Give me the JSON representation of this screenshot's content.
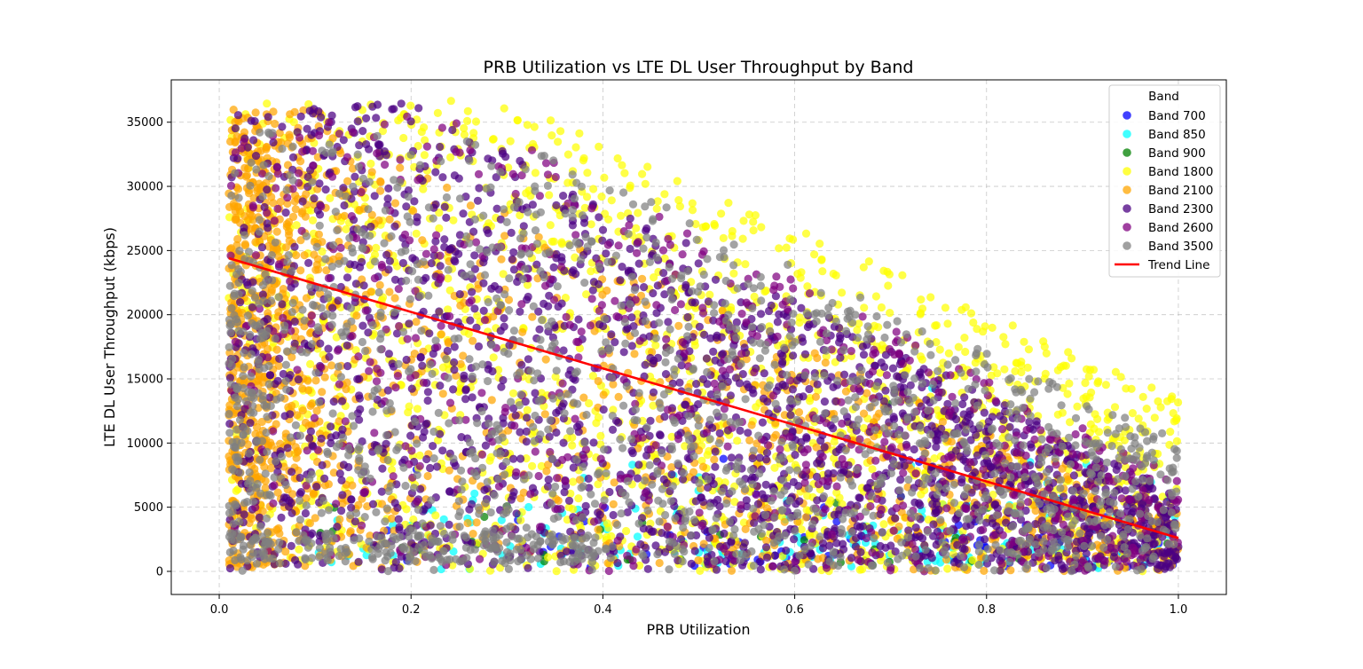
{
  "chart_data": {
    "type": "scatter",
    "title": "PRB Utilization vs LTE DL User Throughput by Band",
    "xlabel": "PRB Utilization",
    "ylabel": "LTE DL User Throughput (kbps)",
    "xlim": [
      -0.05,
      1.05
    ],
    "ylim": [
      -1800,
      38300
    ],
    "xticks": [
      0.0,
      0.2,
      0.4,
      0.6,
      0.8,
      1.0
    ],
    "xtick_labels": [
      "0.0",
      "0.2",
      "0.4",
      "0.6",
      "0.8",
      "1.0"
    ],
    "yticks": [
      0,
      5000,
      10000,
      15000,
      20000,
      25000,
      30000,
      35000
    ],
    "ytick_labels": [
      "0",
      "5000",
      "10000",
      "15000",
      "20000",
      "25000",
      "30000",
      "35000"
    ],
    "grid": true,
    "legend": {
      "title": "Band",
      "placement": "top-right"
    },
    "series": [
      {
        "name": "Band 700",
        "color": "#0000ff"
      },
      {
        "name": "Band 850",
        "color": "#00ffff"
      },
      {
        "name": "Band 900",
        "color": "#008000"
      },
      {
        "name": "Band 1800",
        "color": "#ffff00"
      },
      {
        "name": "Band 2100",
        "color": "#ffa500"
      },
      {
        "name": "Band 2300",
        "color": "#4b0082"
      },
      {
        "name": "Band 2600",
        "color": "#800080"
      },
      {
        "name": "Band 3500",
        "color": "#808080"
      }
    ],
    "trend_line": {
      "name": "Trend Line",
      "color": "#ff0000",
      "x": [
        0.01,
        1.0
      ],
      "y": [
        24400,
        2600
      ]
    }
  }
}
